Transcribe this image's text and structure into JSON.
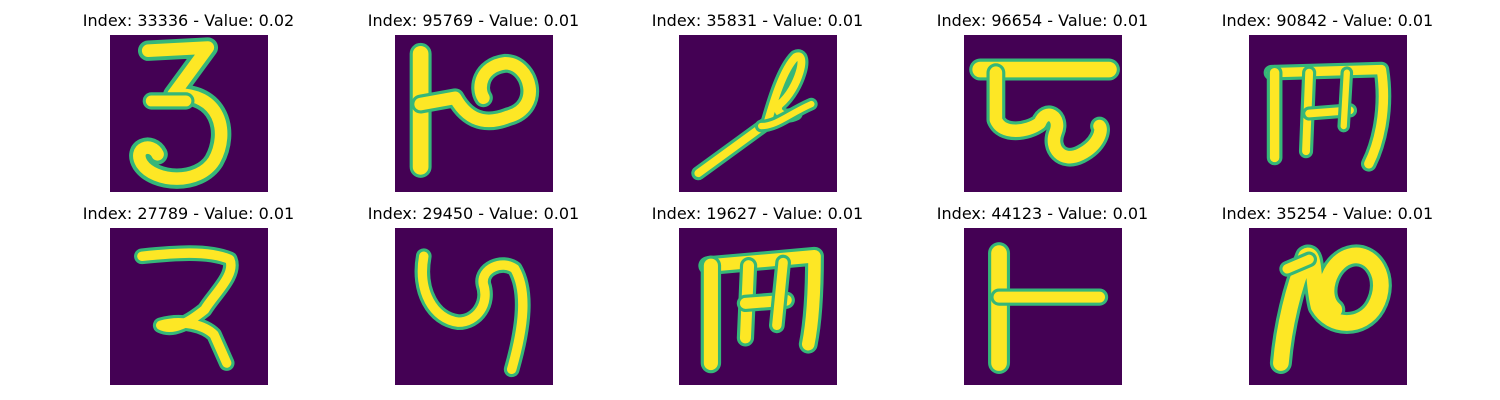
{
  "panels": [
    {
      "title": "Index: 33336 - Value: 0.02",
      "glyph": "glyph-3"
    },
    {
      "title": "Index: 95769 - Value: 0.01",
      "glyph": "glyph-hook-p"
    },
    {
      "title": "Index: 35831 - Value: 0.01",
      "glyph": "glyph-slant-loop"
    },
    {
      "title": "Index: 96654 - Value: 0.01",
      "glyph": "glyph-bar-loop"
    },
    {
      "title": "Index: 90842 - Value: 0.01",
      "glyph": "glyph-m-like"
    },
    {
      "title": "Index: 27789 - Value: 0.01",
      "glyph": "glyph-r-like"
    },
    {
      "title": "Index: 29450 - Value: 0.01",
      "glyph": "glyph-y-like"
    },
    {
      "title": "Index: 19627 - Value: 0.01",
      "glyph": "glyph-m-like-2"
    },
    {
      "title": "Index: 44123 - Value: 0.01",
      "glyph": "glyph-t-like"
    },
    {
      "title": "Index: 35254 - Value: 0.01",
      "glyph": "glyph-p-like"
    }
  ],
  "colors": {
    "background": "#440154",
    "stroke_core": "#fde725",
    "stroke_edge": "#35b779"
  }
}
